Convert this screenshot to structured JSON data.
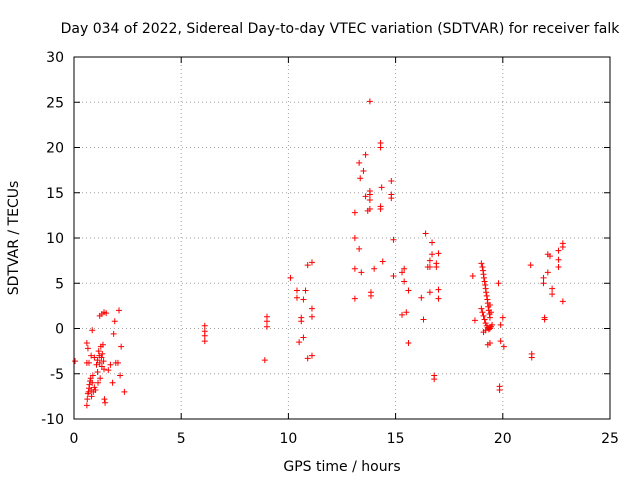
{
  "chart_data": {
    "type": "scatter",
    "title": "Day 034 of 2022, Sidereal Day-to-day VTEC variation (SDTVAR) for receiver falk",
    "xlabel": "GPS time / hours",
    "ylabel": "SDTVAR / TECUs",
    "xlim": [
      0,
      25
    ],
    "ylim": [
      -10,
      30
    ],
    "xticks": [
      0,
      5,
      10,
      15,
      20,
      25
    ],
    "yticks": [
      -10,
      -5,
      0,
      5,
      10,
      15,
      20,
      25,
      30
    ],
    "grid": true,
    "marker": "plus",
    "color": "#ff0000",
    "series": [
      {
        "name": "SDTVAR",
        "points": [
          [
            0.05,
            -3.6
          ],
          [
            0.6,
            -1.6
          ],
          [
            0.65,
            -2.2
          ],
          [
            0.6,
            -3.8
          ],
          [
            0.7,
            -3.8
          ],
          [
            0.85,
            -0.2
          ],
          [
            0.8,
            -3.0
          ],
          [
            0.95,
            -3.2
          ],
          [
            0.6,
            -8.5
          ],
          [
            0.62,
            -7.8
          ],
          [
            0.65,
            -7.2
          ],
          [
            0.68,
            -7.0
          ],
          [
            0.7,
            -6.6
          ],
          [
            0.72,
            -6.2
          ],
          [
            0.75,
            -5.8
          ],
          [
            0.78,
            -5.5
          ],
          [
            0.8,
            -6.8
          ],
          [
            0.82,
            -7.5
          ],
          [
            0.85,
            -6.0
          ],
          [
            0.88,
            -5.2
          ],
          [
            0.9,
            -7.0
          ],
          [
            0.95,
            -6.5
          ],
          [
            1.0,
            -6.8
          ],
          [
            1.05,
            -4.0
          ],
          [
            1.1,
            -3.5
          ],
          [
            1.1,
            -4.8
          ],
          [
            1.12,
            -6.0
          ],
          [
            1.15,
            -2.5
          ],
          [
            1.18,
            -3.0
          ],
          [
            1.2,
            -3.8
          ],
          [
            1.22,
            -5.5
          ],
          [
            1.25,
            -2.0
          ],
          [
            1.28,
            -3.2
          ],
          [
            1.3,
            -4.2
          ],
          [
            1.32,
            -2.8
          ],
          [
            1.35,
            -1.8
          ],
          [
            1.38,
            -3.6
          ],
          [
            1.4,
            -4.5
          ],
          [
            1.42,
            -7.8
          ],
          [
            1.45,
            -8.2
          ],
          [
            1.2,
            1.4
          ],
          [
            1.3,
            1.6
          ],
          [
            1.4,
            1.8
          ],
          [
            1.5,
            1.7
          ],
          [
            1.6,
            -4.6
          ],
          [
            1.7,
            -4.0
          ],
          [
            1.8,
            -6.0
          ],
          [
            1.85,
            -0.6
          ],
          [
            1.9,
            0.8
          ],
          [
            1.95,
            -3.8
          ],
          [
            2.05,
            -3.8
          ],
          [
            2.1,
            2.0
          ],
          [
            2.15,
            -5.2
          ],
          [
            2.2,
            -2.0
          ],
          [
            2.35,
            -7.0
          ],
          [
            6.1,
            0.3
          ],
          [
            6.1,
            -0.3
          ],
          [
            6.1,
            -0.8
          ],
          [
            6.1,
            -1.4
          ],
          [
            9.0,
            1.3
          ],
          [
            9.0,
            0.8
          ],
          [
            9.0,
            0.2
          ],
          [
            8.9,
            -3.5
          ],
          [
            10.1,
            5.6
          ],
          [
            10.4,
            4.2
          ],
          [
            10.4,
            3.4
          ],
          [
            10.5,
            -1.5
          ],
          [
            10.6,
            1.2
          ],
          [
            10.7,
            3.2
          ],
          [
            10.8,
            4.2
          ],
          [
            10.7,
            -1.0
          ],
          [
            10.6,
            0.8
          ],
          [
            10.9,
            7.0
          ],
          [
            10.9,
            -3.3
          ],
          [
            11.1,
            7.3
          ],
          [
            11.1,
            -3.0
          ],
          [
            11.1,
            2.2
          ],
          [
            11.1,
            1.3
          ],
          [
            13.1,
            12.8
          ],
          [
            13.1,
            10.0
          ],
          [
            13.1,
            6.6
          ],
          [
            13.1,
            3.3
          ],
          [
            13.3,
            8.8
          ],
          [
            13.3,
            18.3
          ],
          [
            13.35,
            16.6
          ],
          [
            13.4,
            6.2
          ],
          [
            13.5,
            17.4
          ],
          [
            13.6,
            14.6
          ],
          [
            13.6,
            19.2
          ],
          [
            13.7,
            13.0
          ],
          [
            13.8,
            13.2
          ],
          [
            13.8,
            15.2
          ],
          [
            13.8,
            14.8
          ],
          [
            13.8,
            14.2
          ],
          [
            13.8,
            25.1
          ],
          [
            13.85,
            3.6
          ],
          [
            13.85,
            4.0
          ],
          [
            14.0,
            6.6
          ],
          [
            14.3,
            20.5
          ],
          [
            14.3,
            20.0
          ],
          [
            14.3,
            13.5
          ],
          [
            14.3,
            13.2
          ],
          [
            14.35,
            15.6
          ],
          [
            14.4,
            7.4
          ],
          [
            14.8,
            16.3
          ],
          [
            14.8,
            14.8
          ],
          [
            14.8,
            14.4
          ],
          [
            14.9,
            9.8
          ],
          [
            14.9,
            5.8
          ],
          [
            15.3,
            6.2
          ],
          [
            15.4,
            6.6
          ],
          [
            15.4,
            5.2
          ],
          [
            15.3,
            1.5
          ],
          [
            15.5,
            1.8
          ],
          [
            15.6,
            4.2
          ],
          [
            15.6,
            -1.6
          ],
          [
            16.2,
            3.4
          ],
          [
            16.3,
            1.0
          ],
          [
            16.4,
            10.5
          ],
          [
            16.5,
            6.8
          ],
          [
            16.6,
            6.8
          ],
          [
            16.6,
            7.5
          ],
          [
            16.6,
            4.0
          ],
          [
            16.7,
            9.5
          ],
          [
            16.7,
            8.2
          ],
          [
            16.8,
            -5.2
          ],
          [
            16.8,
            -5.6
          ],
          [
            16.9,
            6.8
          ],
          [
            16.9,
            7.2
          ],
          [
            17.0,
            4.3
          ],
          [
            17.0,
            3.3
          ],
          [
            17.0,
            8.3
          ],
          [
            18.6,
            5.8
          ],
          [
            18.7,
            0.9
          ],
          [
            19.0,
            7.2
          ],
          [
            19.05,
            6.8
          ],
          [
            19.08,
            6.4
          ],
          [
            19.1,
            6.0
          ],
          [
            19.12,
            5.6
          ],
          [
            19.15,
            5.2
          ],
          [
            19.18,
            4.8
          ],
          [
            19.2,
            4.4
          ],
          [
            19.22,
            4.0
          ],
          [
            19.25,
            3.6
          ],
          [
            19.28,
            3.2
          ],
          [
            19.3,
            2.8
          ],
          [
            19.32,
            2.4
          ],
          [
            19.35,
            2.0
          ],
          [
            19.38,
            1.6
          ],
          [
            19.4,
            1.2
          ],
          [
            19.0,
            2.2
          ],
          [
            19.05,
            1.8
          ],
          [
            19.1,
            1.4
          ],
          [
            19.15,
            1.0
          ],
          [
            19.2,
            0.6
          ],
          [
            19.25,
            0.3
          ],
          [
            19.3,
            0.1
          ],
          [
            19.35,
            -0.1
          ],
          [
            19.4,
            0.0
          ],
          [
            19.45,
            0.2
          ],
          [
            19.1,
            -0.4
          ],
          [
            19.2,
            -0.2
          ],
          [
            19.3,
            -1.8
          ],
          [
            19.4,
            -1.6
          ],
          [
            19.4,
            2.6
          ],
          [
            19.45,
            1.8
          ],
          [
            19.5,
            0.4
          ],
          [
            19.8,
            5.0
          ],
          [
            19.85,
            -6.8
          ],
          [
            19.85,
            -6.4
          ],
          [
            19.9,
            0.4
          ],
          [
            19.9,
            -1.4
          ],
          [
            20.0,
            1.2
          ],
          [
            20.05,
            -2.0
          ],
          [
            21.3,
            7.0
          ],
          [
            21.35,
            -2.8
          ],
          [
            21.35,
            -3.2
          ],
          [
            21.9,
            5.6
          ],
          [
            21.9,
            5.0
          ],
          [
            21.95,
            1.0
          ],
          [
            21.95,
            1.2
          ],
          [
            22.1,
            6.2
          ],
          [
            22.1,
            8.2
          ],
          [
            22.2,
            8.0
          ],
          [
            22.3,
            4.4
          ],
          [
            22.3,
            3.8
          ],
          [
            22.6,
            8.6
          ],
          [
            22.6,
            7.6
          ],
          [
            22.6,
            6.8
          ],
          [
            22.8,
            9.0
          ],
          [
            22.8,
            9.4
          ],
          [
            22.8,
            3.0
          ]
        ]
      }
    ]
  }
}
